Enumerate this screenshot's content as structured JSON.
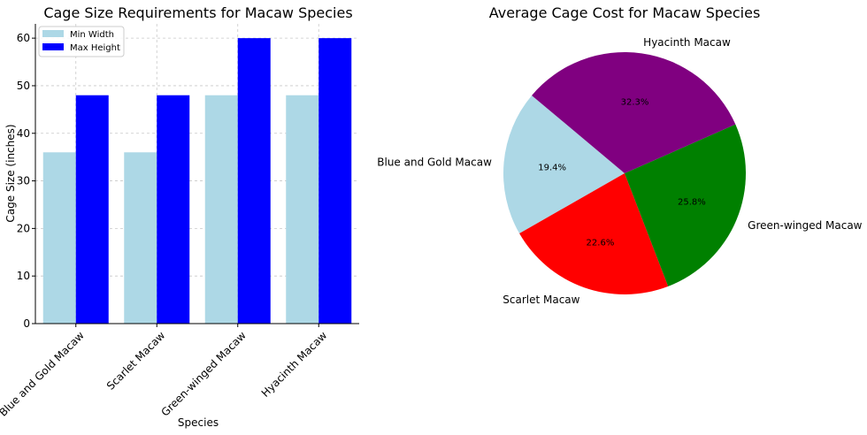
{
  "chart_data": [
    {
      "type": "bar",
      "title": "Cage Size Requirements for Macaw Species",
      "xlabel": "Species",
      "ylabel": "Cage Size (inches)",
      "categories": [
        "Blue and Gold Macaw",
        "Scarlet Macaw",
        "Green-winged Macaw",
        "Hyacinth Macaw"
      ],
      "series": [
        {
          "name": "Min Width",
          "values": [
            36,
            36,
            48,
            48
          ],
          "color": "#add8e6"
        },
        {
          "name": "Max Height",
          "values": [
            48,
            48,
            60,
            60
          ],
          "color": "#0000ff"
        }
      ],
      "ylim": [
        0,
        63
      ],
      "yticks": [
        "0",
        "10",
        "20",
        "30",
        "40",
        "50",
        "60"
      ],
      "grid": true,
      "legend_position": "top-left"
    },
    {
      "type": "pie",
      "title": "Average Cage Cost for Macaw Species",
      "slices": [
        {
          "label": "Blue and Gold Macaw",
          "value": 19.4,
          "pct_label": "19.4%",
          "color": "#add8e6"
        },
        {
          "label": "Scarlet Macaw",
          "value": 22.6,
          "pct_label": "22.6%",
          "color": "#ff0000"
        },
        {
          "label": "Green-winged Macaw",
          "value": 25.8,
          "pct_label": "25.8%",
          "color": "#008000"
        },
        {
          "label": "Hyacinth Macaw",
          "value": 32.3,
          "pct_label": "32.3%",
          "color": "#800080"
        }
      ],
      "start_angle": 140
    }
  ]
}
